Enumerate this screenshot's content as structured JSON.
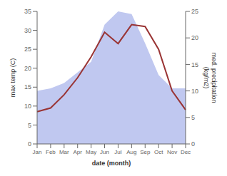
{
  "chart_data": {
    "type": "line",
    "xlabel": "date (month)",
    "ylabel": "max temp (C)",
    "y2label": "med. precipitation\n(kg/m2)",
    "categories": [
      "Jan",
      "Feb",
      "Mar",
      "Apr",
      "May",
      "Jun",
      "Jul",
      "Aug",
      "Sep",
      "Oct",
      "Nov",
      "Dec"
    ],
    "series": [
      {
        "type": "area",
        "axis": "y2",
        "color": "#c0c8f0",
        "values": [
          10.0,
          10.5,
          11.5,
          13.5,
          15.5,
          22.5,
          25.0,
          24.5,
          19.0,
          13.0,
          10.5,
          10.5
        ]
      },
      {
        "type": "line",
        "color": "#993333",
        "values": [
          8.5,
          9.5,
          13.0,
          17.5,
          23.0,
          29.5,
          26.5,
          31.5,
          31.0,
          25.0,
          14.0,
          9.0
        ]
      }
    ],
    "ylim": [
      0,
      35
    ],
    "yticks": [
      0,
      5,
      10,
      15,
      20,
      25,
      30,
      35
    ],
    "y2lim": [
      0,
      25
    ],
    "y2ticks": [
      0,
      5,
      10,
      15,
      20,
      25
    ],
    "grid": false
  }
}
